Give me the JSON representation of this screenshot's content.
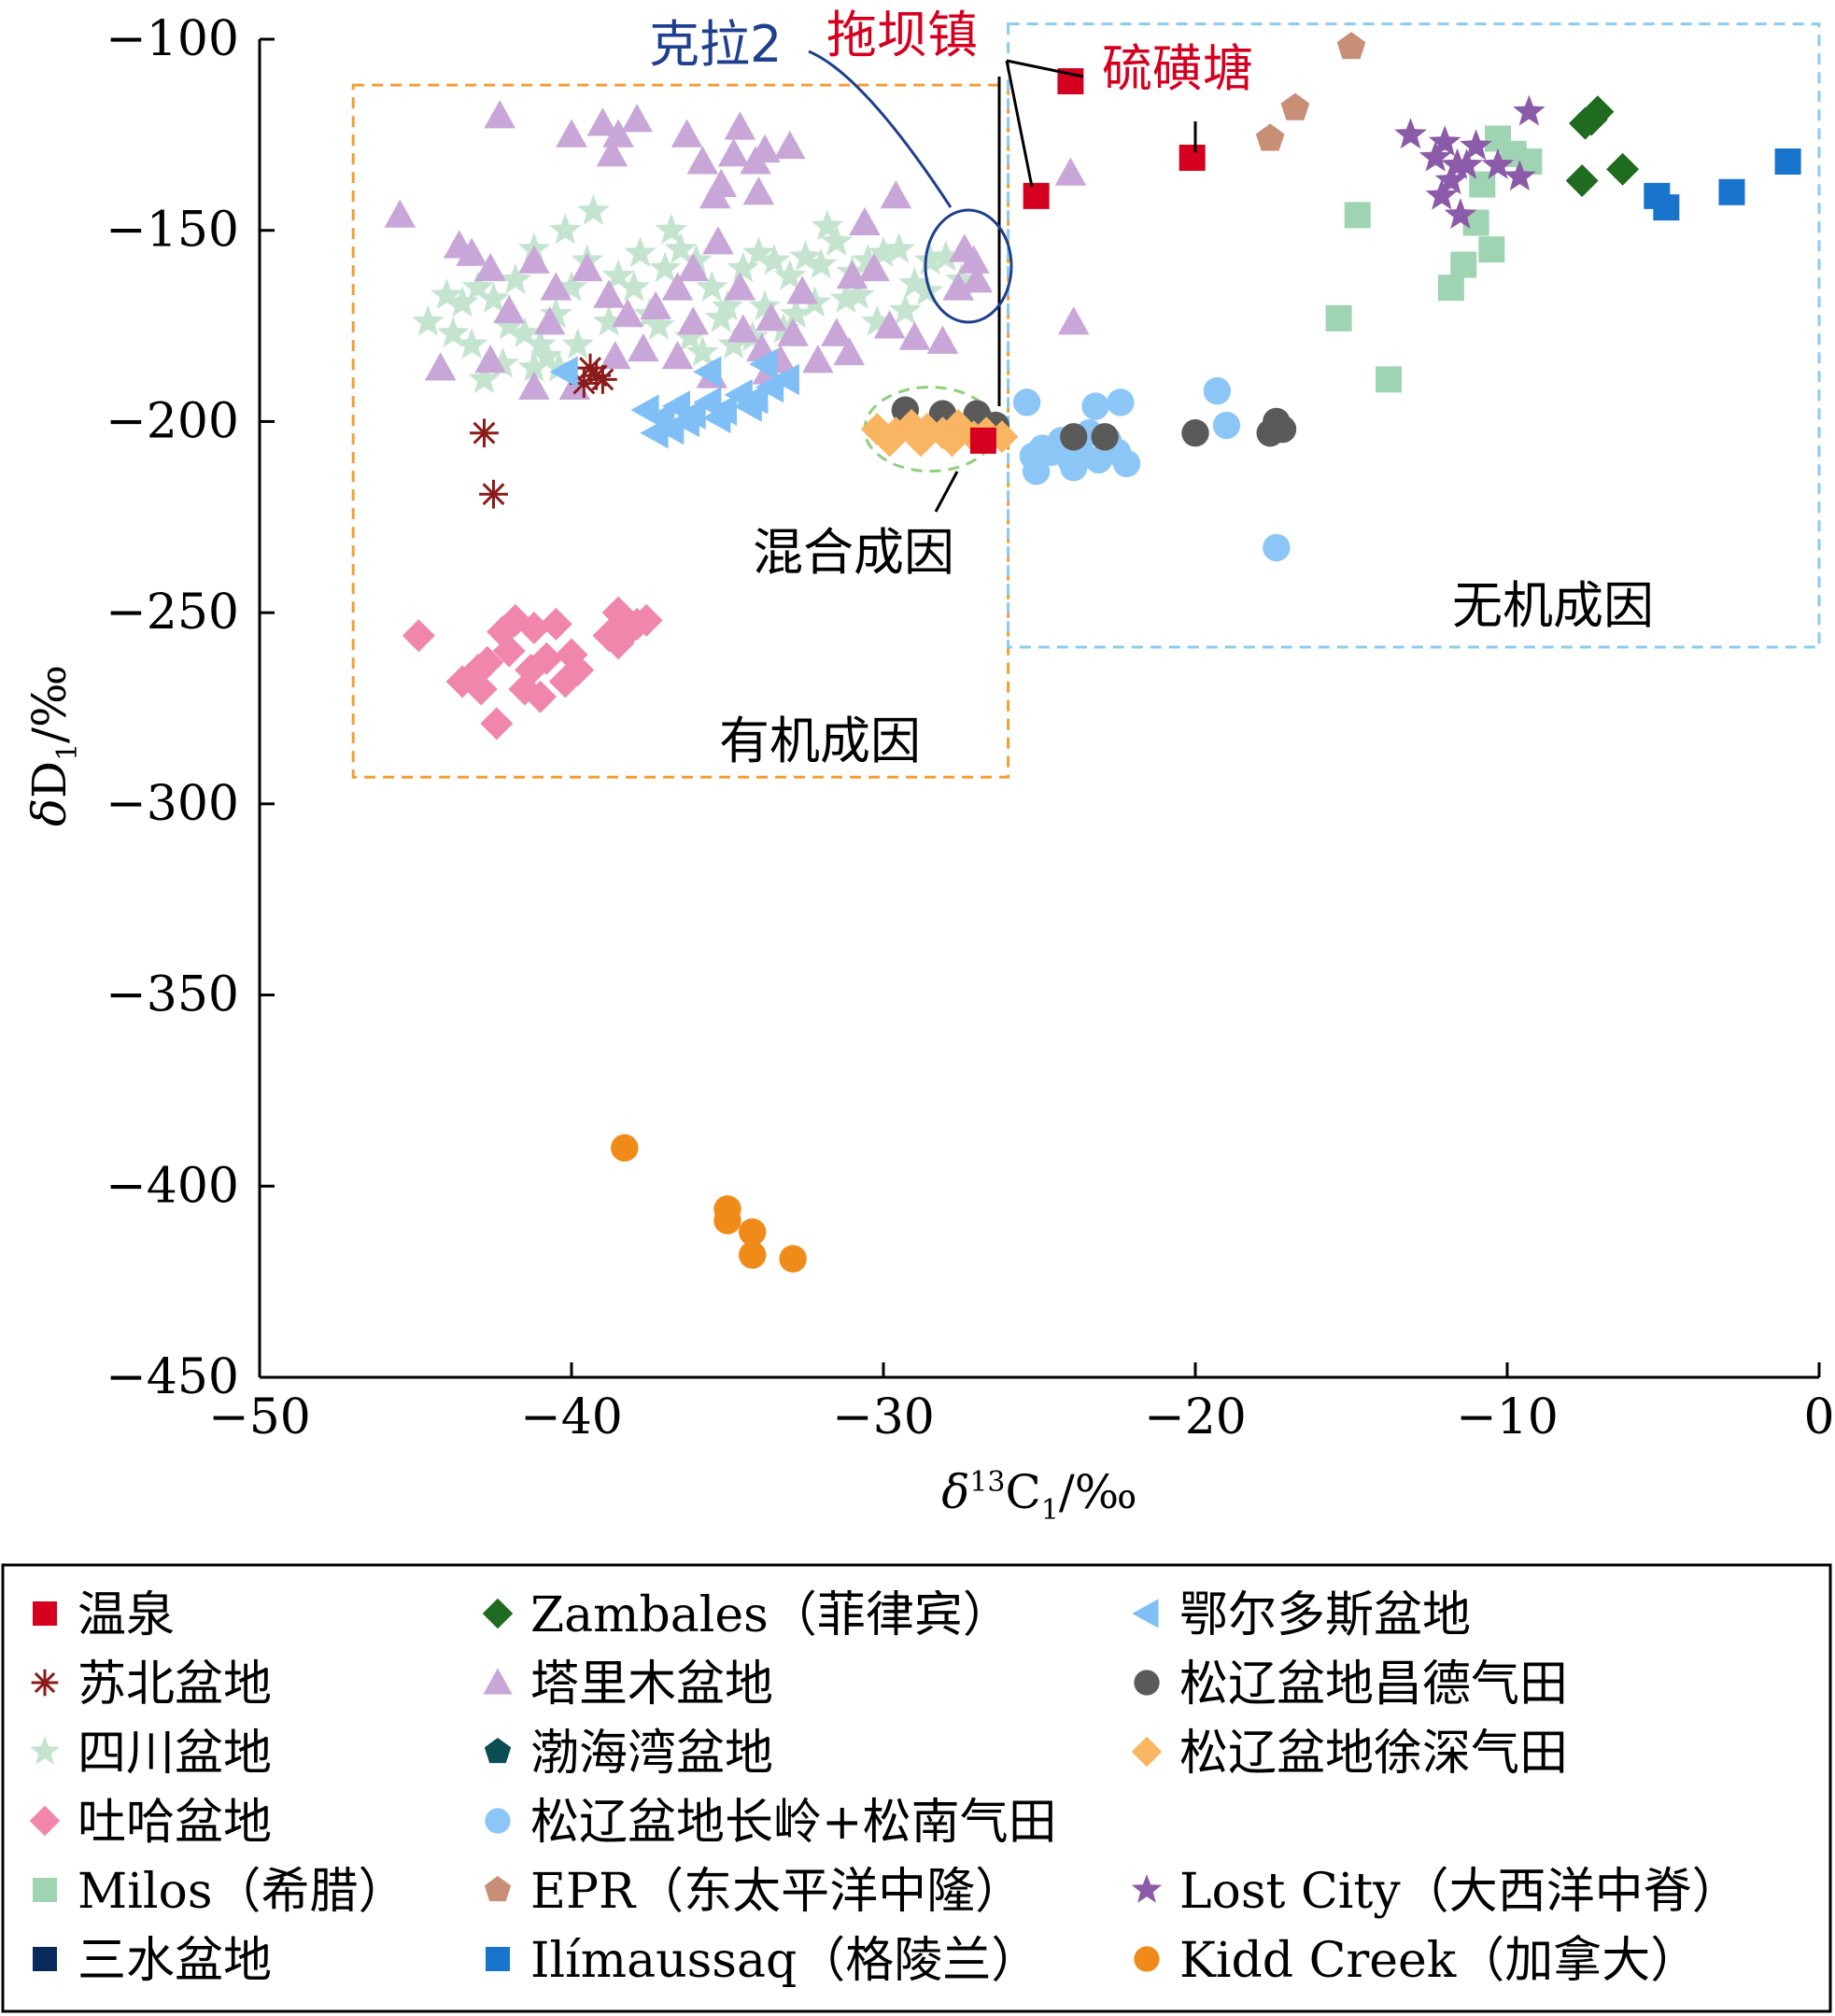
{
  "chart_data": {
    "type": "scatter",
    "xlabel": "δ13C1/‰",
    "ylabel": "δD1/‰",
    "xlim": [
      -50,
      0
    ],
    "ylim": [
      -450,
      -100
    ],
    "x_ticks": [
      -50,
      -40,
      -30,
      -20,
      -10,
      0
    ],
    "y_ticks": [
      -100,
      -150,
      -200,
      -250,
      -300,
      -350,
      -400,
      -450
    ],
    "regions": [
      {
        "name": "有机成因",
        "x": [
          -47.0,
          -26.0
        ],
        "y": [
          -293,
          -112
        ]
      },
      {
        "name": "无机成因",
        "x": [
          -26.0,
          0.0
        ],
        "y": [
          -259,
          -96
        ]
      },
      {
        "name": "混合成因",
        "center": [
          -28.5,
          -202
        ],
        "radius_x": 2.1,
        "radius_y": 11
      }
    ],
    "annotations": {
      "kela2": "克拉2",
      "tuobazhen": "拖坝镇",
      "liuhuangtang": "硫磺塘",
      "mixed": "混合成因",
      "inorganic": "无机成因",
      "organic": "有机成因"
    },
    "series": [
      {
        "name": "温泉",
        "marker": "square",
        "color": "#d5001f",
        "points": [
          [
            -25.1,
            -141
          ],
          [
            -24.0,
            -111
          ],
          [
            -20.1,
            -131
          ],
          [
            -26.8,
            -205
          ]
        ]
      },
      {
        "name": "Zambales（菲律宾）",
        "marker": "diamond",
        "color": "#1f6b1f",
        "points": [
          [
            -7.5,
            -122
          ],
          [
            -7.1,
            -119
          ],
          [
            -7.3,
            -121
          ],
          [
            -7.6,
            -137
          ],
          [
            -6.3,
            -134
          ]
        ]
      },
      {
        "name": "鄂尔多斯盆地",
        "marker": "triangle-left",
        "color": "#7fbff5",
        "points": [
          [
            -37.6,
            -197
          ],
          [
            -37.1,
            -199
          ],
          [
            -36.6,
            -196
          ],
          [
            -36.1,
            -198
          ],
          [
            -35.6,
            -195
          ],
          [
            -35.1,
            -197
          ],
          [
            -34.6,
            -193
          ],
          [
            -34.1,
            -194
          ],
          [
            -33.6,
            -191
          ],
          [
            -33.1,
            -189
          ],
          [
            -37.3,
            -203
          ],
          [
            -36.8,
            -202
          ],
          [
            -36.3,
            -200
          ],
          [
            -35.3,
            -199
          ],
          [
            -34.3,
            -196
          ],
          [
            -33.8,
            -185
          ],
          [
            -35.6,
            -187
          ],
          [
            -40.2,
            -187
          ]
        ]
      },
      {
        "name": "苏北盆地",
        "marker": "asterisk",
        "color": "#8b1a1a",
        "points": [
          [
            -42.8,
            -203
          ],
          [
            -42.5,
            -219
          ],
          [
            -39.6,
            -190
          ],
          [
            -39.2,
            -188
          ],
          [
            -39.0,
            -189
          ],
          [
            -39.4,
            -186
          ]
        ]
      },
      {
        "name": "塔里木盆地",
        "marker": "triangle",
        "color": "#c9a6d8",
        "points": [
          [
            -42.3,
            -120
          ],
          [
            -40.0,
            -125
          ],
          [
            -39.0,
            -122
          ],
          [
            -38.5,
            -125
          ],
          [
            -37.9,
            -121
          ],
          [
            -38.7,
            -130
          ],
          [
            -36.3,
            -125
          ],
          [
            -35.8,
            -132
          ],
          [
            -35.2,
            -138
          ],
          [
            -34.8,
            -130
          ],
          [
            -34.6,
            -123
          ],
          [
            -34.1,
            -132
          ],
          [
            -33.8,
            -129
          ],
          [
            -35.4,
            -141
          ],
          [
            -34.0,
            -140
          ],
          [
            -33.0,
            -128
          ],
          [
            -30.6,
            -148
          ],
          [
            -45.5,
            -146
          ],
          [
            -43.6,
            -154
          ],
          [
            -43.2,
            -156
          ],
          [
            -42.6,
            -160
          ],
          [
            -41.2,
            -158
          ],
          [
            -40.5,
            -165
          ],
          [
            -39.5,
            -160
          ],
          [
            -38.8,
            -167
          ],
          [
            -38.2,
            -172
          ],
          [
            -37.3,
            -170
          ],
          [
            -36.6,
            -165
          ],
          [
            -36.1,
            -174
          ],
          [
            -35.3,
            -153
          ],
          [
            -34.6,
            -165
          ],
          [
            -33.6,
            -173
          ],
          [
            -32.6,
            -166
          ],
          [
            -31.5,
            -177
          ],
          [
            -31.0,
            -162
          ],
          [
            -30.3,
            -160
          ],
          [
            -36.6,
            -183
          ],
          [
            -35.5,
            -188
          ],
          [
            -33.9,
            -181
          ],
          [
            -33.3,
            -184
          ],
          [
            -32.1,
            -184
          ],
          [
            -31.1,
            -182
          ],
          [
            -29.8,
            -175
          ],
          [
            -29.0,
            -178
          ],
          [
            -28.1,
            -179
          ],
          [
            -27.4,
            -155
          ],
          [
            -27.1,
            -158
          ],
          [
            -27.6,
            -165
          ],
          [
            -27.0,
            -163
          ],
          [
            -24.0,
            -135
          ],
          [
            -23.9,
            -174
          ],
          [
            -29.6,
            -141
          ],
          [
            -42.6,
            -184
          ],
          [
            -44.2,
            -186
          ],
          [
            -41.2,
            -191
          ],
          [
            -38.6,
            -183
          ],
          [
            -37.7,
            -181
          ],
          [
            -36.1,
            -160
          ],
          [
            -39.9,
            -191
          ],
          [
            -33.7,
            -187
          ],
          [
            -34.5,
            -176
          ],
          [
            -32.9,
            -177
          ],
          [
            -42.0,
            -171
          ],
          [
            -40.7,
            -174
          ]
        ]
      },
      {
        "name": "松辽盆地昌德气田",
        "marker": "circle",
        "color": "#5a5a5a",
        "points": [
          [
            -29.3,
            -197
          ],
          [
            -28.1,
            -198
          ],
          [
            -27.0,
            -198
          ],
          [
            -26.4,
            -201
          ],
          [
            -23.9,
            -204
          ],
          [
            -22.9,
            -204
          ],
          [
            -20.0,
            -203
          ],
          [
            -17.6,
            -203
          ],
          [
            -17.4,
            -200
          ],
          [
            -17.2,
            -202
          ]
        ]
      },
      {
        "name": "四川盆地",
        "marker": "star",
        "color": "#c5e4cf",
        "points": [
          [
            -44.0,
            -167
          ],
          [
            -43.5,
            -169
          ],
          [
            -43.0,
            -165
          ],
          [
            -42.5,
            -168
          ],
          [
            -42.0,
            -175
          ],
          [
            -41.5,
            -177
          ],
          [
            -41.0,
            -180
          ],
          [
            -40.5,
            -172
          ],
          [
            -40.0,
            -165
          ],
          [
            -39.5,
            -158
          ],
          [
            -39.3,
            -145
          ],
          [
            -38.5,
            -162
          ],
          [
            -38.0,
            -165
          ],
          [
            -37.5,
            -172
          ],
          [
            -37.0,
            -160
          ],
          [
            -36.5,
            -155
          ],
          [
            -36.0,
            -158
          ],
          [
            -35.5,
            -165
          ],
          [
            -35.0,
            -170
          ],
          [
            -34.5,
            -160
          ],
          [
            -34.0,
            -156
          ],
          [
            -33.5,
            -158
          ],
          [
            -33.0,
            -162
          ],
          [
            -32.5,
            -157
          ],
          [
            -32.0,
            -159
          ],
          [
            -31.5,
            -153
          ],
          [
            -31.0,
            -161
          ],
          [
            -30.5,
            -158
          ],
          [
            -30.0,
            -156
          ],
          [
            -29.5,
            -155
          ],
          [
            -29.0,
            -164
          ],
          [
            -28.5,
            -158
          ],
          [
            -28.0,
            -157
          ],
          [
            -27.5,
            -163
          ],
          [
            -41.2,
            -155
          ],
          [
            -40.2,
            -150
          ],
          [
            -37.2,
            -175
          ],
          [
            -36.2,
            -178
          ],
          [
            -35.2,
            -173
          ],
          [
            -34.2,
            -178
          ],
          [
            -33.2,
            -176
          ],
          [
            -32.2,
            -169
          ],
          [
            -31.2,
            -168
          ],
          [
            -30.2,
            -174
          ],
          [
            -29.3,
            -171
          ],
          [
            -43.2,
            -180
          ],
          [
            -42.2,
            -185
          ],
          [
            -41.2,
            -186
          ],
          [
            -44.6,
            -174
          ],
          [
            -43.8,
            -177
          ],
          [
            -42.8,
            -189
          ],
          [
            -40.8,
            -183
          ],
          [
            -39.8,
            -180
          ],
          [
            -35.8,
            -182
          ],
          [
            -34.8,
            -180
          ],
          [
            -33.8,
            -170
          ],
          [
            -30.8,
            -167
          ],
          [
            -32.8,
            -172
          ],
          [
            -28.6,
            -166
          ],
          [
            -37.8,
            -156
          ],
          [
            -31.8,
            -149
          ],
          [
            -36.8,
            -150
          ],
          [
            -38.8,
            -174
          ],
          [
            -41.8,
            -163
          ],
          [
            -40.4,
            -186
          ]
        ]
      },
      {
        "name": "渤海湾盆地",
        "marker": "pentagon",
        "color": "#0b4d52",
        "points": []
      },
      {
        "name": "松辽盆地徐深气田",
        "marker": "diamond",
        "color": "#f9b562",
        "points": [
          [
            -30.2,
            -202
          ],
          [
            -29.6,
            -203
          ],
          [
            -29.1,
            -201
          ],
          [
            -28.6,
            -202
          ],
          [
            -28.1,
            -203
          ],
          [
            -27.6,
            -201
          ],
          [
            -27.1,
            -204
          ],
          [
            -26.7,
            -203
          ],
          [
            -26.2,
            -204
          ],
          [
            -29.8,
            -205
          ],
          [
            -28.8,
            -205
          ],
          [
            -27.8,
            -205
          ]
        ]
      },
      {
        "name": "吐哈盆地",
        "marker": "diamond",
        "color": "#f086ab",
        "points": [
          [
            -44.9,
            -256
          ],
          [
            -43.5,
            -268
          ],
          [
            -43.0,
            -265
          ],
          [
            -42.7,
            -263
          ],
          [
            -42.4,
            -279
          ],
          [
            -42.2,
            -255
          ],
          [
            -42.0,
            -260
          ],
          [
            -41.8,
            -252
          ],
          [
            -41.5,
            -270
          ],
          [
            -41.3,
            -265
          ],
          [
            -41.0,
            -272
          ],
          [
            -40.8,
            -262
          ],
          [
            -40.5,
            -253
          ],
          [
            -40.2,
            -268
          ],
          [
            -39.8,
            -265
          ],
          [
            -38.8,
            -256
          ],
          [
            -38.5,
            -250
          ],
          [
            -38.2,
            -255
          ],
          [
            -37.9,
            -253
          ],
          [
            -37.6,
            -252
          ],
          [
            -41.2,
            -254
          ],
          [
            -42.9,
            -270
          ],
          [
            -40.0,
            -261
          ],
          [
            -38.5,
            -258
          ]
        ]
      },
      {
        "name": "松辽盆地长岭+松南气田",
        "marker": "circle",
        "color": "#8cc6f7",
        "points": [
          [
            -25.4,
            -195
          ],
          [
            -25.1,
            -213
          ],
          [
            -24.9,
            -207
          ],
          [
            -24.6,
            -208
          ],
          [
            -24.3,
            -205
          ],
          [
            -24.0,
            -210
          ],
          [
            -23.7,
            -208
          ],
          [
            -23.4,
            -203
          ],
          [
            -23.1,
            -210
          ],
          [
            -22.8,
            -205
          ],
          [
            -22.5,
            -208
          ],
          [
            -23.2,
            -196
          ],
          [
            -22.4,
            -195
          ],
          [
            -22.2,
            -211
          ],
          [
            -19.3,
            -192
          ],
          [
            -19.0,
            -201
          ],
          [
            -17.4,
            -233
          ],
          [
            -25.2,
            -209
          ],
          [
            -23.9,
            -212
          ]
        ]
      },
      {
        "name": "Milos（希腊）",
        "marker": "square",
        "color": "#9fd4b2",
        "points": [
          [
            -15.4,
            -173
          ],
          [
            -14.8,
            -146
          ],
          [
            -13.8,
            -189
          ],
          [
            -11.8,
            -165
          ],
          [
            -11.4,
            -159
          ],
          [
            -11.0,
            -148
          ],
          [
            -10.8,
            -138
          ],
          [
            -10.5,
            -155
          ],
          [
            -10.3,
            -126
          ],
          [
            -9.8,
            -130
          ],
          [
            -9.3,
            -132
          ]
        ]
      },
      {
        "name": "EPR（东太平洋中隆）",
        "marker": "pentagon",
        "color": "#c98e76",
        "points": [
          [
            -17.6,
            -126
          ],
          [
            -16.8,
            -118
          ],
          [
            -15.0,
            -102
          ]
        ]
      },
      {
        "name": "Lost City（大西洋中脊）",
        "marker": "star",
        "color": "#8b5aa8",
        "points": [
          [
            -13.1,
            -125
          ],
          [
            -12.3,
            -131
          ],
          [
            -12.0,
            -127
          ],
          [
            -11.8,
            -137
          ],
          [
            -12.1,
            -141
          ],
          [
            -11.6,
            -133
          ],
          [
            -11.3,
            -133
          ],
          [
            -11.0,
            -128
          ],
          [
            -10.3,
            -133
          ],
          [
            -9.6,
            -136
          ],
          [
            -9.3,
            -119
          ],
          [
            -11.5,
            -146
          ]
        ]
      },
      {
        "name": "三水盆地",
        "marker": "square",
        "color": "#0a2a5b",
        "points": []
      },
      {
        "name": "Ilímaussaq（格陵兰）",
        "marker": "square",
        "color": "#1874cd",
        "points": [
          [
            -5.2,
            -141
          ],
          [
            -4.9,
            -144
          ],
          [
            -2.8,
            -140
          ],
          [
            -1.0,
            -132
          ]
        ]
      },
      {
        "name": "Kidd Creek（加拿大）",
        "marker": "circle",
        "color": "#f08a19",
        "points": [
          [
            -38.3,
            -390
          ],
          [
            -35.0,
            -409
          ],
          [
            -35.0,
            -406
          ],
          [
            -34.2,
            -412
          ],
          [
            -34.2,
            -418
          ],
          [
            -32.9,
            -419
          ]
        ]
      }
    ],
    "legend": [
      [
        "温泉",
        "Zambales（菲律宾）",
        "鄂尔多斯盆地"
      ],
      [
        "苏北盆地",
        "塔里木盆地",
        "松辽盆地昌德气田"
      ],
      [
        "四川盆地",
        "渤海湾盆地",
        "松辽盆地徐深气田"
      ],
      [
        "吐哈盆地",
        "松辽盆地长岭+松南气田"
      ],
      [
        "Milos（希腊）",
        "EPR（东太平洋中隆）",
        "Lost City（大西洋中脊）"
      ],
      [
        "三水盆地",
        "Ilímaussaq（格陵兰）",
        "Kidd Creek（加拿大）"
      ]
    ],
    "legend_placement": "bottom"
  }
}
